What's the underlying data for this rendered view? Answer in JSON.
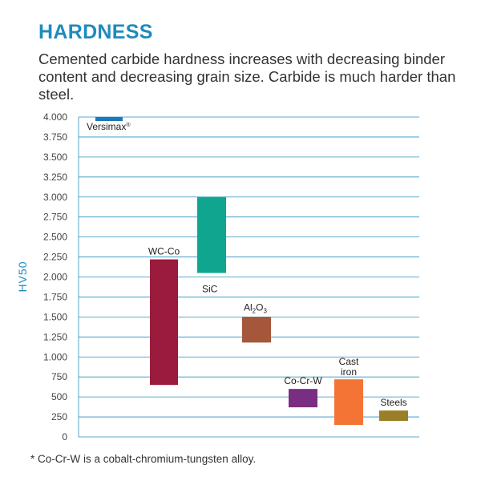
{
  "header": {
    "title": "HARDNESS",
    "subtitle": "Cemented carbide hardness increases with decreasing binder content and decreasing grain size. Carbide is much harder than steel."
  },
  "footnote": "* Co-Cr-W is a cobalt-chromium-tungsten alloy.",
  "colors": {
    "grid": "#2a8fc3",
    "axis_label": "#1f8bbd"
  },
  "chart_data": {
    "type": "bar",
    "subtype": "floating-range",
    "ylabel": "HV50",
    "ylim": [
      0,
      4000
    ],
    "y_ticks": [
      0,
      250,
      500,
      750,
      1000,
      1250,
      1500,
      1750,
      2000,
      2250,
      2500,
      2750,
      3000,
      3250,
      3500,
      3750,
      4000
    ],
    "y_tick_labels": [
      "0",
      "250",
      "500",
      "750",
      "1.000",
      "1.250",
      "1.500",
      "1.750",
      "2.000",
      "2.250",
      "2.500",
      "2.750",
      "3.000",
      "3.250",
      "3.500",
      "3.750",
      "4.000"
    ],
    "grid": true,
    "bars": [
      {
        "label": "Versimax",
        "mark": "®",
        "low": 3950,
        "high": 4000,
        "color": "#1f78b4"
      },
      {
        "label": "WC-Co",
        "low": 650,
        "high": 2220,
        "color": "#9b1b3c"
      },
      {
        "label": "SiC",
        "low": 2050,
        "high": 3000,
        "color": "#10a58e"
      },
      {
        "label": "Al",
        "sub1": "2",
        "label2": "O",
        "sub2": "3",
        "low": 1180,
        "high": 1500,
        "color": "#a4573a"
      },
      {
        "label": "Co-Cr-W",
        "low": 370,
        "high": 600,
        "color": "#7a2e82"
      },
      {
        "label": "Cast",
        "label_line2": "iron",
        "low": 150,
        "high": 720,
        "color": "#f37435"
      },
      {
        "label": "Steels",
        "low": 200,
        "high": 330,
        "color": "#9b7f27"
      }
    ]
  }
}
